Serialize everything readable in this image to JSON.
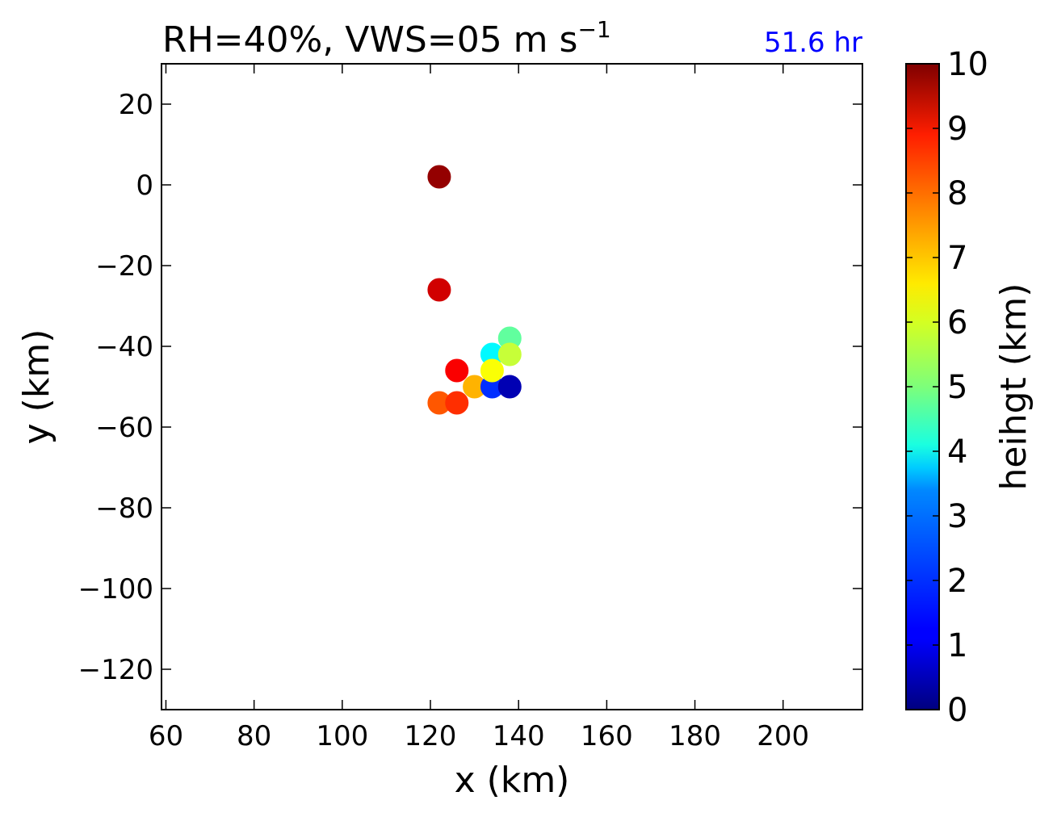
{
  "chart_data": {
    "type": "scatter",
    "title": "RH=40%, VWS=05 m s",
    "title_superscript": "−1",
    "annotation": "51.6 hr",
    "annotation_color": "#0000ff",
    "xlabel": "x (km)",
    "ylabel": "y (km)",
    "xlim": [
      59,
      218
    ],
    "ylim": [
      -130,
      30
    ],
    "xticks": [
      60,
      80,
      100,
      120,
      140,
      160,
      180,
      200
    ],
    "yticks": [
      20,
      0,
      -20,
      -40,
      -60,
      -80,
      -100,
      -120
    ],
    "grid": false,
    "colormap": "jet",
    "colorbar": {
      "label": "heihgt (km)",
      "range": [
        0,
        10
      ],
      "ticks": [
        0,
        1,
        2,
        3,
        4,
        5,
        6,
        7,
        8,
        9,
        10
      ]
    },
    "points": [
      {
        "x": 122,
        "y": 2,
        "height": 9.8
      },
      {
        "x": 122,
        "y": -26,
        "height": 9.2
      },
      {
        "x": 122,
        "y": -54,
        "height": 7.9
      },
      {
        "x": 126,
        "y": -54,
        "height": 8.3
      },
      {
        "x": 130,
        "y": -50,
        "height": 7.0
      },
      {
        "x": 134,
        "y": -42,
        "height": 3.7
      },
      {
        "x": 138,
        "y": -38,
        "height": 4.7
      },
      {
        "x": 134,
        "y": -50,
        "height": 1.7
      },
      {
        "x": 138,
        "y": -42,
        "height": 5.7
      },
      {
        "x": 134,
        "y": -46,
        "height": 6.2
      },
      {
        "x": 138,
        "y": -50,
        "height": 0.5
      },
      {
        "x": 126,
        "y": -46,
        "height": 8.8
      }
    ]
  }
}
